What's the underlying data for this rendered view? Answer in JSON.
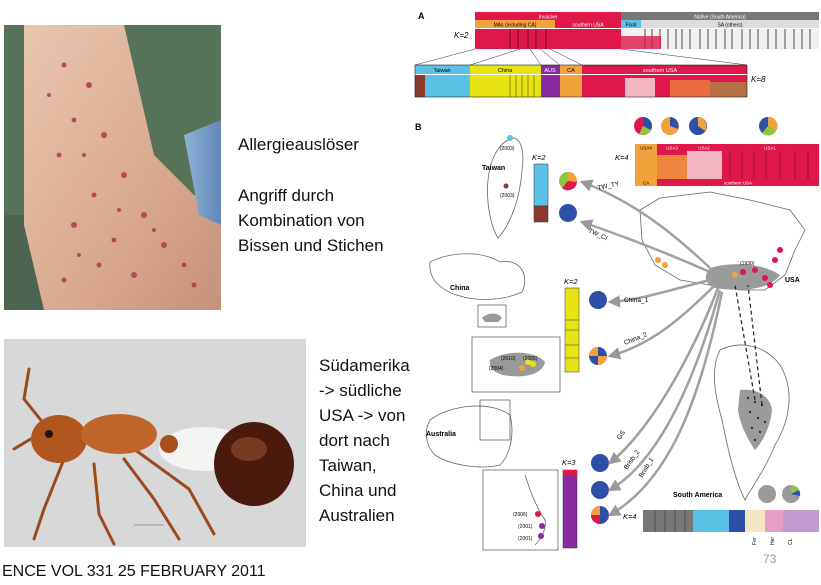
{
  "slide": {
    "text_allergy": "Allergieauslöser",
    "text_attack": [
      "Angriff durch",
      "Kombination von",
      "Bissen und Stichen"
    ],
    "text_spread": [
      "Südamerika",
      "-> südliche",
      "USA -> von",
      "dort nach",
      "Taiwan,",
      "China und",
      "Australien"
    ],
    "citation": "ENCE VOL 331 25 FEBRUARY 2011",
    "page_number": "73"
  },
  "figure": {
    "panel_a": {
      "label": "A",
      "k2": "K=2",
      "k8": "K=8",
      "group_invasive": "Invasive",
      "group_native": "Native (South America)",
      "sub_mas": "MAs (including CA)",
      "sub_southern_usa": "southern USA",
      "sub_fora": "ForA",
      "sub_sa_others": "SA (others)",
      "labels_k8": [
        "Taiwan",
        "China",
        "AUS",
        "CA",
        "southern USA"
      ]
    },
    "panel_b": {
      "label": "B",
      "k4": "K=4",
      "k2_taiwan": "K=2",
      "k2_china": "K=2",
      "k3": "K=3",
      "usa_clusters": [
        "USA4",
        "USA3",
        "USA2",
        "USA1"
      ],
      "usa_sub": [
        "CA",
        "southern USA"
      ],
      "region_taiwan": "Taiwan",
      "region_china": "China",
      "region_australia": "Australia",
      "region_usa": "USA",
      "region_south_america": "South America",
      "k4_sa": "K=4",
      "sa_labels": [
        "For",
        "Her",
        "CL"
      ],
      "years_taiwan": [
        "(2003)",
        "(2003)"
      ],
      "years_china": [
        "(2010)",
        "(2005)",
        "(2004)"
      ],
      "years_australia": [
        "(2006)",
        "(2001)",
        "(2001)"
      ],
      "year_usa": "(1930)",
      "routes": [
        "TW_TY",
        "TW_CI",
        "China_1",
        "China_2",
        "GS",
        "Brisb_2",
        "Brisb_1"
      ]
    },
    "colors": {
      "red": "#e0174a",
      "orange": "#f2a23c",
      "blue": "#2e4fa8",
      "cyan": "#5bc2e7",
      "yellow": "#e8e312",
      "green": "#8cc63f",
      "purple": "#8a2aa0",
      "pink": "#f4b6c2",
      "brown": "#8b3a2b",
      "gray_map": "#9a9a9a"
    }
  }
}
